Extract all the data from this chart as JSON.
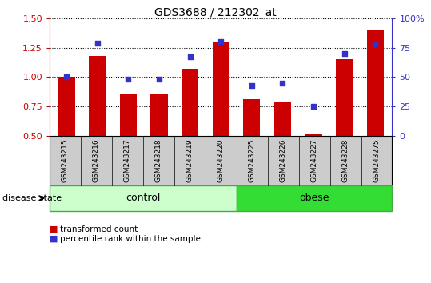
{
  "title": "GDS3688 / 212302_at",
  "samples": [
    "GSM243215",
    "GSM243216",
    "GSM243217",
    "GSM243218",
    "GSM243219",
    "GSM243220",
    "GSM243225",
    "GSM243226",
    "GSM243227",
    "GSM243228",
    "GSM243275"
  ],
  "transformed_count": [
    1.0,
    1.18,
    0.855,
    0.86,
    1.07,
    1.295,
    0.815,
    0.79,
    0.52,
    1.155,
    1.4
  ],
  "percentile_rank": [
    50,
    79,
    48,
    48,
    67,
    80,
    43,
    45,
    25,
    70,
    78
  ],
  "ylim_left": [
    0.5,
    1.5
  ],
  "ylim_right": [
    0,
    100
  ],
  "yticks_left": [
    0.5,
    0.75,
    1.0,
    1.25,
    1.5
  ],
  "yticks_right": [
    0,
    25,
    50,
    75,
    100
  ],
  "ytick_labels_right": [
    "0",
    "25",
    "50",
    "75",
    "100%"
  ],
  "bar_color": "#cc0000",
  "dot_color": "#3333cc",
  "control_group_count": 6,
  "obese_group_count": 5,
  "control_label": "control",
  "obese_label": "obese",
  "disease_state_label": "disease state",
  "legend_bar_label": "transformed count",
  "legend_dot_label": "percentile rank within the sample",
  "control_color": "#ccffcc",
  "obese_color": "#33dd33",
  "bar_width": 0.55,
  "tick_area_color": "#cccccc",
  "tick_area_line_color": "#888888",
  "white_bg": "#ffffff"
}
